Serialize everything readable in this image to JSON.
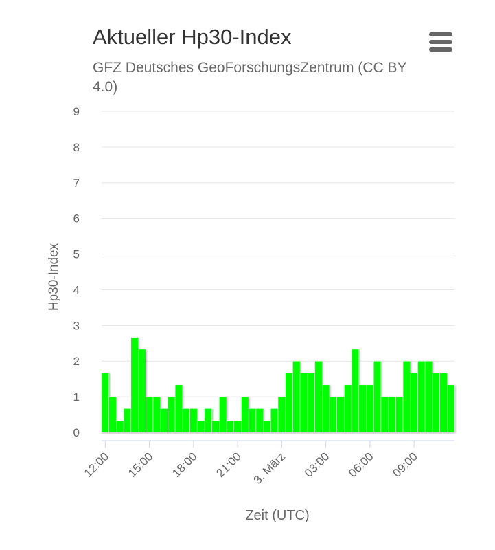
{
  "chart_data": {
    "type": "bar",
    "title": "Aktueller Hp30-Index",
    "subtitle_lines": [
      "GFZ Deutsches GeoForschungsZentrum (CC BY",
      "4.0)"
    ],
    "y_axis_label": "Hp30-Index",
    "x_axis_label": "Zeit (UTC)",
    "categories": [
      "12:00",
      null,
      null,
      null,
      null,
      null,
      "15:00",
      null,
      null,
      null,
      null,
      null,
      "18:00",
      null,
      null,
      null,
      null,
      null,
      "21:00",
      null,
      null,
      null,
      null,
      null,
      "3. März",
      null,
      null,
      null,
      null,
      null,
      "03:00",
      null,
      null,
      null,
      null,
      null,
      "06:00",
      null,
      null,
      null,
      null,
      null,
      "09:00",
      null,
      null,
      null,
      null,
      null
    ],
    "values": [
      1.667,
      1,
      0.333,
      0.667,
      2.667,
      2.333,
      1,
      1,
      0.667,
      1,
      1.333,
      0.667,
      0.667,
      0.333,
      0.667,
      0.333,
      1,
      0.333,
      0.333,
      1,
      0.667,
      0.667,
      0.333,
      0.667,
      1,
      1.667,
      2,
      1.667,
      1.667,
      2,
      1.333,
      1,
      1,
      1.333,
      2.333,
      1.333,
      1.333,
      2,
      1,
      1,
      1,
      2,
      1.667,
      2,
      2,
      1.667,
      1.667,
      1.333
    ],
    "color": "#00ff00",
    "ylim": [
      0,
      9
    ],
    "yticks": [
      0,
      1,
      2,
      3,
      4,
      5,
      6,
      7,
      8,
      9
    ],
    "grid": true
  }
}
